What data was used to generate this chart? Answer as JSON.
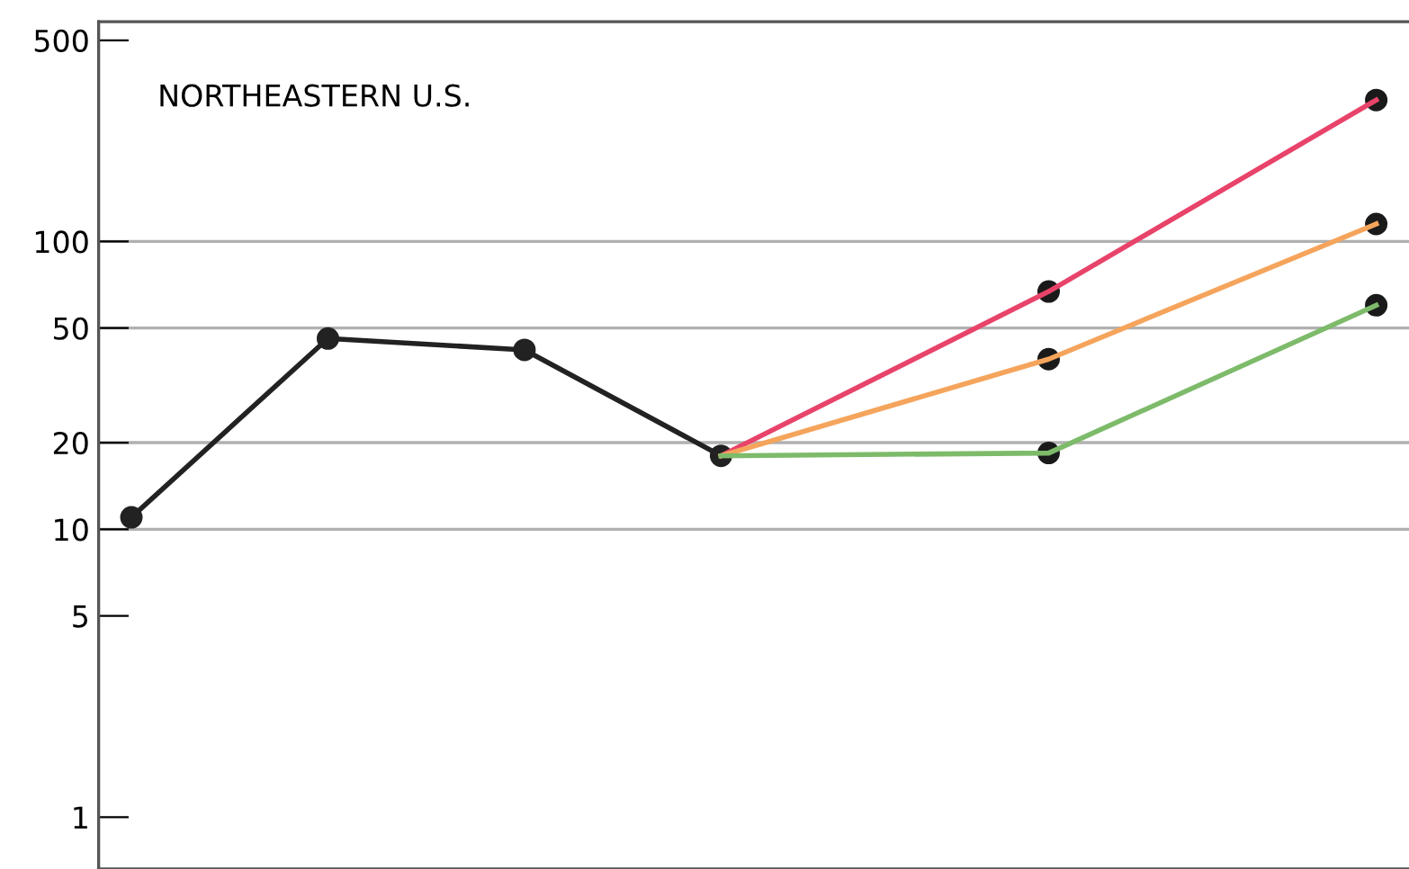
{
  "chart_data": {
    "type": "line",
    "title": "NORTHEASTERN U.S.",
    "categories": [
      null,
      null,
      null,
      null,
      null,
      null,
      null,
      null,
      null,
      null,
      null,
      null,
      null,
      null,
      null,
      null,
      null,
      null,
      null,
      null
    ],
    "series": [
      {
        "color": "#222222",
        "marker": "circle",
        "values": [
          11,
          null,
          null,
          46,
          null,
          null,
          42,
          null,
          null,
          18,
          null,
          null,
          null,
          null,
          null,
          null,
          null,
          null,
          null,
          null
        ]
      },
      {
        "color": "#e8436a",
        "marker": "none",
        "values": [
          null,
          null,
          null,
          null,
          null,
          null,
          null,
          null,
          null,
          18,
          null,
          null,
          null,
          null,
          67,
          null,
          null,
          null,
          null,
          310
        ]
      },
      {
        "color": "#f5a45c",
        "marker": "none",
        "values": [
          null,
          null,
          null,
          null,
          null,
          null,
          null,
          null,
          null,
          18,
          null,
          null,
          null,
          null,
          39,
          null,
          null,
          null,
          null,
          115
        ]
      },
      {
        "color": "#7dbb6a",
        "marker": "none",
        "values": [
          null,
          null,
          null,
          null,
          null,
          null,
          null,
          null,
          null,
          18,
          null,
          null,
          null,
          null,
          18.4,
          null,
          null,
          null,
          null,
          60
        ]
      },
      {
        "type": "scatter",
        "color": "#1a1a1a",
        "marker": "circle",
        "values": [
          null,
          null,
          null,
          null,
          null,
          null,
          null,
          null,
          null,
          null,
          null,
          null,
          null,
          null,
          67,
          null,
          null,
          null,
          null,
          310
        ]
      },
      {
        "type": "scatter",
        "color": "#1a1a1a",
        "marker": "circle",
        "values": [
          null,
          null,
          null,
          null,
          null,
          null,
          null,
          null,
          null,
          null,
          null,
          null,
          null,
          null,
          39,
          null,
          null,
          null,
          null,
          115
        ]
      },
      {
        "type": "scatter",
        "color": "#1a1a1a",
        "marker": "circle",
        "values": [
          null,
          null,
          null,
          null,
          null,
          null,
          null,
          null,
          null,
          null,
          null,
          null,
          null,
          null,
          18.4,
          null,
          null,
          null,
          null,
          60
        ]
      }
    ],
    "log": "y",
    "ylim": [
      0.66,
      580
    ],
    "yticks": [
      1,
      5,
      10,
      20,
      50,
      100,
      500
    ],
    "ref_lines": [
      {
        "axis": "y",
        "value": 10,
        "color": "#b0b0b0"
      },
      {
        "axis": "y",
        "value": 20,
        "color": "#b0b0b0"
      },
      {
        "axis": "y",
        "value": 50,
        "color": "#b0b0b0"
      },
      {
        "axis": "y",
        "value": 100,
        "color": "#b0b0b0"
      }
    ],
    "grid": false,
    "line_style": "solid",
    "legend": false
  }
}
